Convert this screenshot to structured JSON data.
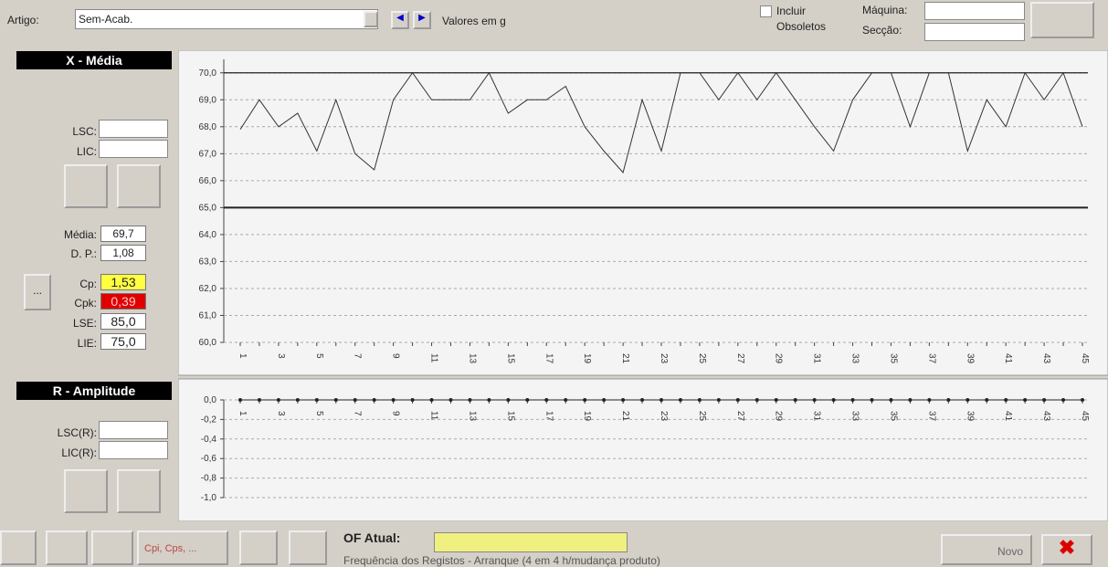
{
  "toolbar": {
    "artigo_label": "Artigo:",
    "artigo_value": "Sem-Acab.",
    "units": "Valores em g",
    "incluir": "Incluir",
    "obsoletos": "Obsoletos",
    "maquina_label": "Máquina:",
    "seccao_label": "Secção:"
  },
  "xbar_panel": {
    "title": "X - Média",
    "lsc": "LSC:",
    "lic": "LIC:",
    "media_label": "Média:",
    "media_value": "69,7",
    "dp_label": "D. P.:",
    "dp_value": "1,08",
    "more": "...",
    "cp_label": "Cp:",
    "cp_value": "1,53",
    "cpk_label": "Cpk:",
    "cpk_value": "0,39",
    "lse_label": "LSE:",
    "lse_value": "85,0",
    "lie_label": "LIE:",
    "lie_value": "75,0"
  },
  "r_panel": {
    "title": "R - Amplitude",
    "lsc": "LSC(R):",
    "lic": "LIC(R):"
  },
  "bottom": {
    "cpi": "Cpi, Cps, ...",
    "of_label": "OF Atual:",
    "freq": "Frequência dos Registos - Arranque (4 em 4 h/mudança produto)",
    "novo": "Novo"
  },
  "charts": {
    "xbar": {
      "type": "line",
      "color": "#333333",
      "categories": [
        "1",
        null,
        "3",
        null,
        "5",
        null,
        "7",
        null,
        "9",
        null,
        "11",
        null,
        "13",
        null,
        "15",
        null,
        "17",
        null,
        "19",
        null,
        "21",
        null,
        "23",
        null,
        "25",
        null,
        "27",
        null,
        "29",
        null,
        "31",
        null,
        "33",
        null,
        "35",
        null,
        "37",
        null,
        "39",
        null,
        "41",
        null,
        "43",
        null,
        "45"
      ],
      "values": [
        67.9,
        69.0,
        68.0,
        68.5,
        67.1,
        69.0,
        67.0,
        66.4,
        69.0,
        70.0,
        69.0,
        69.0,
        69.0,
        70.0,
        68.5,
        69.0,
        69.0,
        69.5,
        68.0,
        67.1,
        66.3,
        69.0,
        67.1,
        70.0,
        70.0,
        69.0,
        70.0,
        69.0,
        70.0,
        69.0,
        68.0,
        67.1,
        69.0,
        70.0,
        70.0,
        68.0,
        70.0,
        70.0,
        67.1,
        69.0,
        68.0,
        70.0,
        69.0,
        70.0,
        68.0
      ],
      "reference_lines": [
        70,
        65
      ],
      "ylim": [
        60,
        70.5
      ],
      "yticks": [
        {
          "value": 60,
          "label": "60,0"
        },
        {
          "value": 61,
          "label": "61,0"
        },
        {
          "value": 62,
          "label": "62,0"
        },
        {
          "value": 63,
          "label": "63,0"
        },
        {
          "value": 64,
          "label": "64,0"
        },
        {
          "value": 65,
          "label": "65,0"
        },
        {
          "value": 66,
          "label": "66,0"
        },
        {
          "value": 67,
          "label": "67,0"
        },
        {
          "value": 68,
          "label": "68,0"
        },
        {
          "value": 69,
          "label": "69,0"
        },
        {
          "value": 70,
          "label": "70,0"
        }
      ],
      "grid": true
    },
    "r": {
      "type": "line",
      "color": "#222222",
      "categories": [
        "1",
        null,
        "3",
        null,
        "5",
        null,
        "7",
        null,
        "9",
        null,
        "11",
        null,
        "13",
        null,
        "15",
        null,
        "17",
        null,
        "19",
        null,
        "21",
        null,
        "23",
        null,
        "25",
        null,
        "27",
        null,
        "29",
        null,
        "31",
        null,
        "33",
        null,
        "35",
        null,
        "37",
        null,
        "39",
        null,
        "41",
        null,
        "43",
        null,
        "45"
      ],
      "values": [
        0,
        0,
        0,
        0,
        0,
        0,
        0,
        0,
        0,
        0,
        0,
        0,
        0,
        0,
        0,
        0,
        0,
        0,
        0,
        0,
        0,
        0,
        0,
        0,
        0,
        0,
        0,
        0,
        0,
        0,
        0,
        0,
        0,
        0,
        0,
        0,
        0,
        0,
        0,
        0,
        0,
        0,
        0,
        0,
        0
      ],
      "ylim": [
        -1,
        0
      ],
      "yticks": [
        {
          "value": 0,
          "label": "0,0"
        },
        {
          "value": -0.2,
          "label": "-0,2"
        },
        {
          "value": -0.4,
          "label": "-0,4"
        },
        {
          "value": -0.6,
          "label": "-0,6"
        },
        {
          "value": -0.8,
          "label": "-0,8"
        },
        {
          "value": -1,
          "label": "-1,0"
        }
      ],
      "grid": true
    }
  }
}
